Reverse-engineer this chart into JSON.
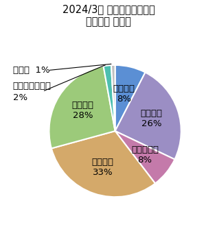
{
  "title_line1": "2024/3期 事業セグメント別",
  "title_line2": "営業利益 構成比",
  "title_fontsize": 10.5,
  "labels": [
    "戸建住宅",
    "賃貸住宅",
    "マンション",
    "商業施設",
    "事業施設",
    "環境エネルギー",
    "その他"
  ],
  "values": [
    8,
    26,
    8,
    33,
    28,
    2,
    1
  ],
  "colors": [
    "#5b8fd4",
    "#9b8ec4",
    "#c47aaa",
    "#d4a96a",
    "#9cca7a",
    "#4dbfb0",
    "#c0c0c0"
  ],
  "startangle": 90,
  "figsize": [
    3.16,
    3.5
  ],
  "dpi": 100,
  "label_fontsize": 9.5,
  "outside_label_fontsize": 9.5
}
